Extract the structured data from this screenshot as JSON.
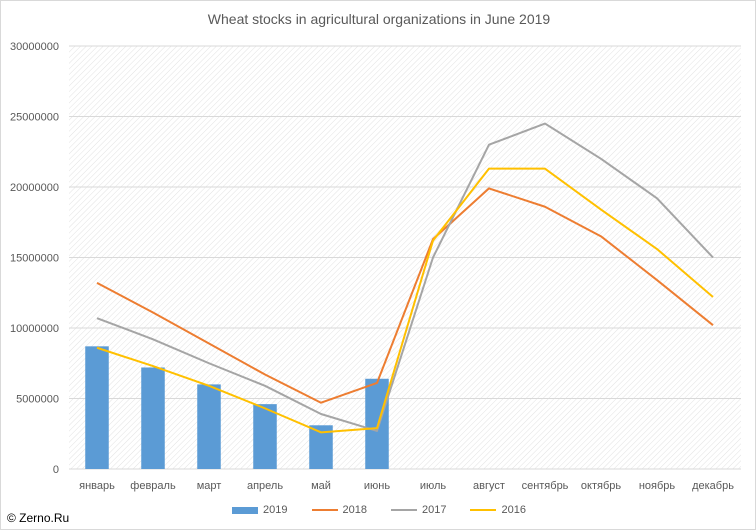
{
  "chart_data": {
    "type": "bar",
    "title": "Wheat stocks in agricultural organizations in June 2019",
    "categories": [
      "январь",
      "февраль",
      "март",
      "апрель",
      "май",
      "июнь",
      "июль",
      "август",
      "сентябрь",
      "октябрь",
      "ноябрь",
      "декабрь"
    ],
    "ylim": [
      0,
      30000000
    ],
    "yticks": [
      0,
      5000000,
      10000000,
      15000000,
      20000000,
      25000000,
      30000000
    ],
    "ytick_labels": [
      "0",
      "5000000",
      "10000000",
      "15000000",
      "20000000",
      "25000000",
      "30000000"
    ],
    "xlabel": "",
    "ylabel": "",
    "grid": true,
    "legend_position": "bottom",
    "series": [
      {
        "name": "2019",
        "kind": "bar",
        "color": "#5b9bd5",
        "values": [
          8700000,
          7200000,
          6000000,
          4600000,
          3100000,
          6400000,
          null,
          null,
          null,
          null,
          null,
          null
        ]
      },
      {
        "name": "2018",
        "kind": "line",
        "color": "#ed7d31",
        "values": [
          13200000,
          11100000,
          8900000,
          6700000,
          4700000,
          6100000,
          16300000,
          19900000,
          18600000,
          16500000,
          13400000,
          10200000
        ]
      },
      {
        "name": "2017",
        "kind": "line",
        "color": "#a5a5a5",
        "values": [
          10700000,
          9200000,
          7500000,
          5900000,
          3900000,
          2700000,
          15000000,
          23000000,
          24500000,
          22000000,
          19200000,
          15000000
        ]
      },
      {
        "name": "2016",
        "kind": "line",
        "color": "#ffc000",
        "values": [
          8600000,
          7300000,
          5900000,
          4300000,
          2600000,
          2900000,
          16200000,
          21300000,
          21300000,
          18400000,
          15600000,
          12200000
        ]
      }
    ]
  },
  "watermark": "© Zerno.Ru"
}
